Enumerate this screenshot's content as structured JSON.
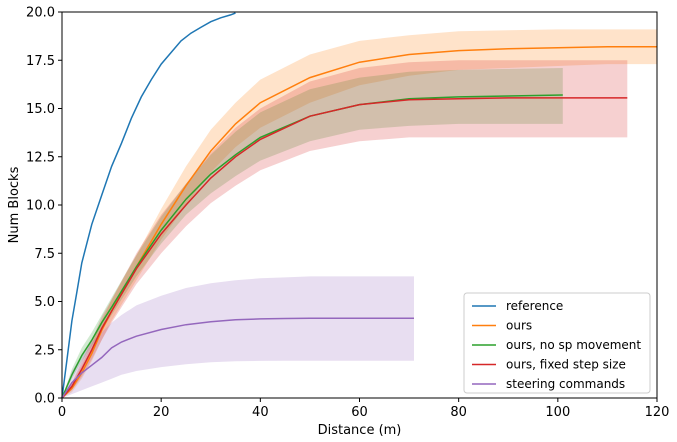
{
  "chart_data": {
    "type": "line",
    "title": "",
    "xlabel": "Distance (m)",
    "ylabel": "Num Blocks",
    "xlim": [
      0,
      120
    ],
    "ylim": [
      0,
      20
    ],
    "xticks": [
      0,
      20,
      40,
      60,
      80,
      100,
      120
    ],
    "yticks": [
      0.0,
      2.5,
      5.0,
      7.5,
      10.0,
      12.5,
      15.0,
      17.5,
      20.0
    ],
    "xtick_labels": [
      "0",
      "20",
      "40",
      "60",
      "80",
      "100",
      "120"
    ],
    "ytick_labels": [
      "0.0",
      "2.5",
      "5.0",
      "7.5",
      "10.0",
      "12.5",
      "15.0",
      "17.5",
      "20.0"
    ],
    "grid": false,
    "legend_position": "lower-right",
    "series": [
      {
        "name": "reference",
        "color": "#1f77b4",
        "x": [
          0,
          1,
          2,
          3,
          4,
          5,
          6,
          8,
          10,
          12,
          14,
          16,
          18,
          20,
          22,
          24,
          26,
          28,
          30,
          32,
          34,
          35
        ],
        "y": [
          0,
          2.0,
          4.0,
          5.5,
          7.0,
          8.0,
          9.0,
          10.5,
          12.0,
          13.2,
          14.5,
          15.6,
          16.5,
          17.3,
          17.9,
          18.5,
          18.9,
          19.2,
          19.5,
          19.7,
          19.85,
          19.95
        ]
      },
      {
        "name": "ours",
        "color": "#ff7f0e",
        "x": [
          0,
          2,
          4,
          6,
          8,
          10,
          15,
          20,
          25,
          30,
          35,
          40,
          50,
          60,
          70,
          80,
          90,
          100,
          110,
          120
        ],
        "y": [
          0,
          0.5,
          1.3,
          2.3,
          3.5,
          4.5,
          6.8,
          9.0,
          11.0,
          12.8,
          14.2,
          15.3,
          16.6,
          17.4,
          17.8,
          18.0,
          18.1,
          18.15,
          18.2,
          18.2
        ],
        "lower": [
          0,
          0.3,
          1.0,
          1.9,
          3.0,
          4.0,
          6.1,
          8.2,
          10.0,
          11.7,
          13.0,
          14.0,
          15.3,
          16.2,
          16.7,
          17.0,
          17.1,
          17.2,
          17.3,
          17.3
        ],
        "upper": [
          0,
          0.8,
          1.7,
          2.8,
          4.0,
          5.1,
          7.4,
          9.8,
          12.0,
          13.9,
          15.3,
          16.5,
          17.8,
          18.5,
          18.8,
          19.0,
          19.05,
          19.1,
          19.1,
          19.1
        ]
      },
      {
        "name": "ours, no sp movement",
        "color": "#2ca02c",
        "x": [
          0,
          2,
          4,
          6,
          8,
          10,
          15,
          20,
          25,
          30,
          35,
          40,
          50,
          60,
          70,
          80,
          90,
          101
        ],
        "y": [
          0,
          1.2,
          2.2,
          3.0,
          3.9,
          4.7,
          6.8,
          8.7,
          10.3,
          11.6,
          12.6,
          13.5,
          14.6,
          15.2,
          15.5,
          15.6,
          15.65,
          15.7
        ],
        "lower": [
          0,
          1.0,
          1.9,
          2.7,
          3.5,
          4.3,
          6.3,
          8.0,
          9.5,
          10.6,
          11.5,
          12.3,
          13.3,
          13.9,
          14.1,
          14.2,
          14.2,
          14.2
        ],
        "upper": [
          0,
          1.5,
          2.6,
          3.4,
          4.3,
          5.2,
          7.4,
          9.4,
          11.1,
          12.6,
          13.8,
          14.8,
          16.0,
          16.6,
          16.9,
          17.0,
          17.05,
          17.1
        ]
      },
      {
        "name": "ours, fixed step size",
        "color": "#d62728",
        "x": [
          0,
          2,
          4,
          6,
          8,
          10,
          15,
          20,
          25,
          30,
          35,
          40,
          50,
          60,
          70,
          80,
          90,
          100,
          114
        ],
        "y": [
          0,
          0.6,
          1.5,
          2.5,
          3.6,
          4.5,
          6.7,
          8.5,
          10.0,
          11.4,
          12.5,
          13.4,
          14.6,
          15.2,
          15.45,
          15.5,
          15.55,
          15.55,
          15.55
        ],
        "lower": [
          0,
          0.4,
          1.1,
          2.0,
          3.0,
          3.9,
          5.9,
          7.5,
          8.9,
          10.1,
          11.0,
          11.8,
          12.8,
          13.3,
          13.5,
          13.5,
          13.5,
          13.5,
          13.5
        ],
        "upper": [
          0,
          0.8,
          1.9,
          3.0,
          4.2,
          5.1,
          7.5,
          9.5,
          11.1,
          12.7,
          14.0,
          15.0,
          16.4,
          17.1,
          17.4,
          17.5,
          17.5,
          17.5,
          17.5
        ]
      },
      {
        "name": "steering commands",
        "color": "#9467bd",
        "x": [
          0,
          2,
          4,
          6,
          8,
          10,
          12,
          15,
          20,
          25,
          30,
          35,
          40,
          45,
          50,
          60,
          71
        ],
        "y": [
          0,
          0.8,
          1.3,
          1.7,
          2.1,
          2.6,
          2.9,
          3.2,
          3.55,
          3.8,
          3.95,
          4.05,
          4.1,
          4.12,
          4.13,
          4.13,
          4.13
        ],
        "lower": [
          0,
          0.2,
          0.4,
          0.6,
          0.8,
          1.0,
          1.2,
          1.4,
          1.6,
          1.75,
          1.85,
          1.9,
          1.92,
          1.93,
          1.93,
          1.93,
          1.93
        ],
        "upper": [
          0,
          1.4,
          2.2,
          2.9,
          3.4,
          3.9,
          4.3,
          4.8,
          5.3,
          5.7,
          5.95,
          6.1,
          6.2,
          6.25,
          6.3,
          6.3,
          6.3
        ]
      }
    ]
  }
}
